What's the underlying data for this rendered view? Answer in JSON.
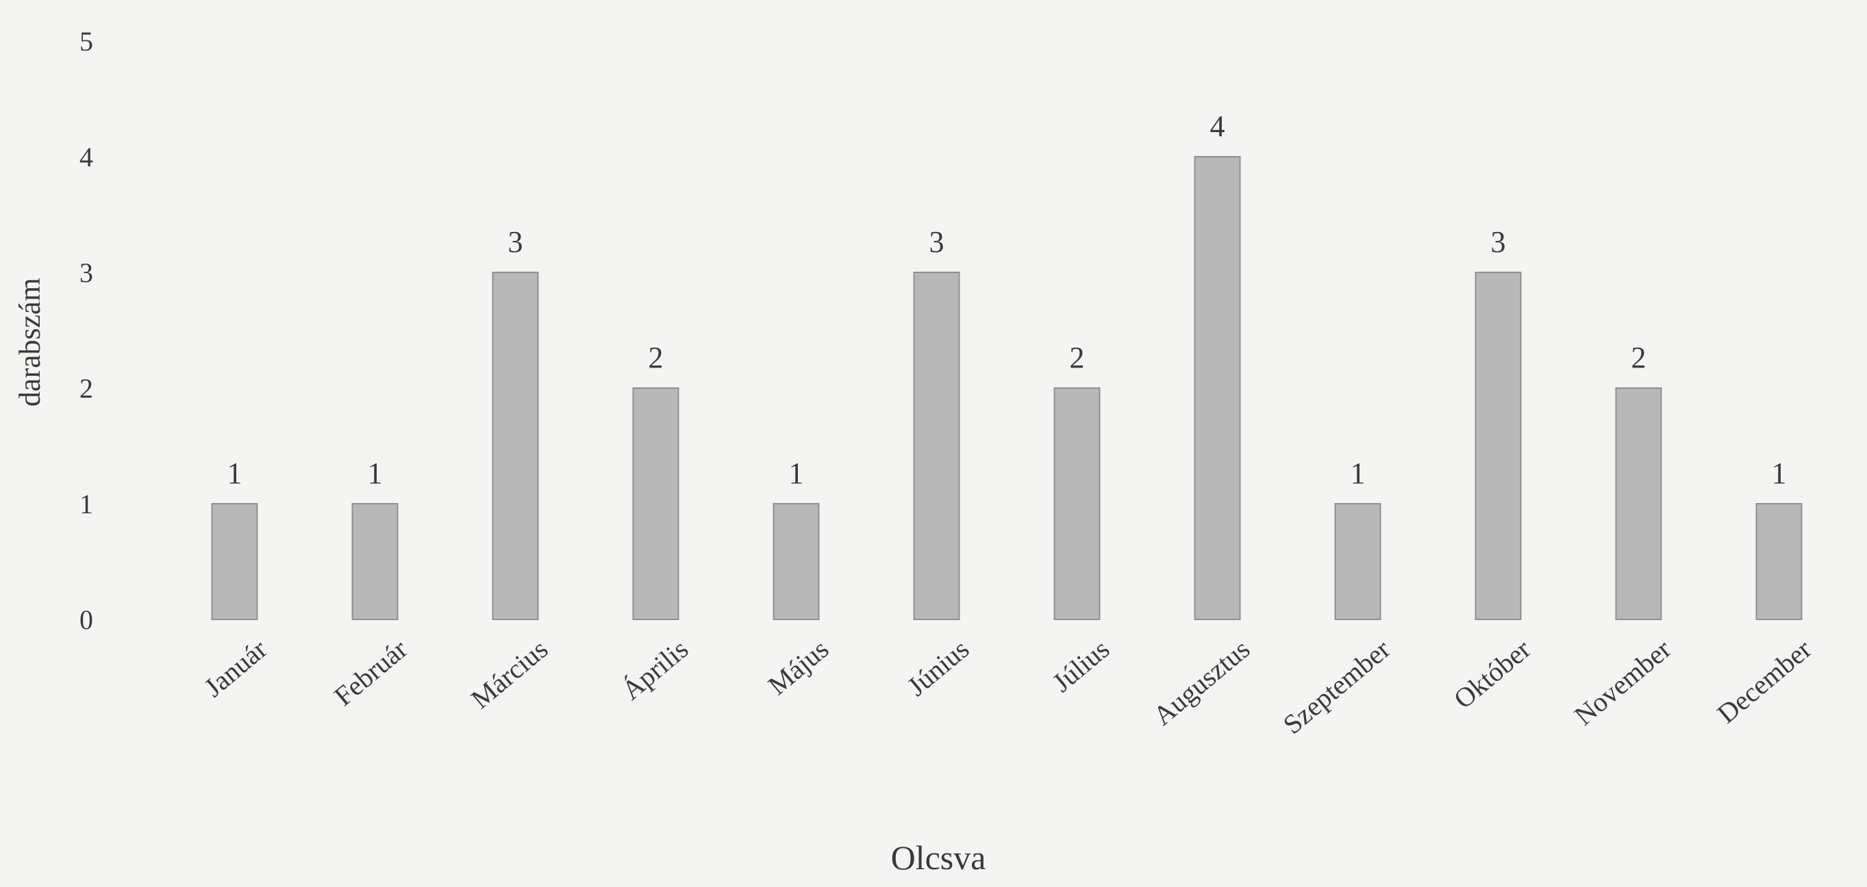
{
  "chart_data": {
    "type": "bar",
    "categories": [
      "Január",
      "Február",
      "Március",
      "Április",
      "Május",
      "Június",
      "Július",
      "Augusztus",
      "Szeptember",
      "Október",
      "November",
      "December"
    ],
    "values": [
      1,
      1,
      3,
      2,
      1,
      3,
      2,
      4,
      1,
      3,
      2,
      1
    ],
    "data_labels": [
      "1",
      "1",
      "3",
      "2",
      "1",
      "3",
      "2",
      "4",
      "1",
      "3",
      "2",
      "1"
    ],
    "title": "",
    "xlabel": "Olcsva",
    "ylabel": "darabszám",
    "ylim": [
      0,
      5
    ],
    "yticks": [
      0,
      1,
      2,
      3,
      4,
      5
    ],
    "grid": false,
    "legend": "none",
    "colors": {
      "bar_fill": "#b8b8b8",
      "bar_edge": "#8f8f8f",
      "background": "#f4f4f2",
      "text": "#3a3a3a"
    }
  }
}
